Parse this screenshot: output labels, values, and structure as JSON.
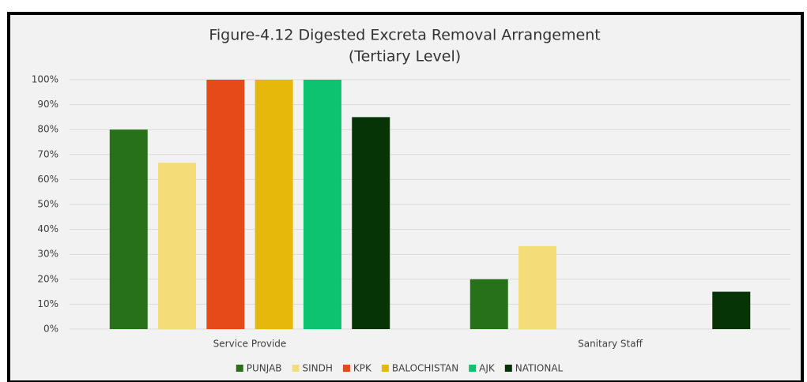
{
  "chart_data": {
    "type": "bar",
    "title": "Figure-4.12 Digested Excreta Removal Arrangement",
    "subtitle": "(Tertiary Level)",
    "categories": [
      "Service Provide",
      "Sanitary Staff"
    ],
    "series": [
      {
        "name": "PUNJAB",
        "color": "#277118",
        "values": [
          80,
          20
        ]
      },
      {
        "name": "SINDH",
        "color": "#f4dd78",
        "values": [
          66.7,
          33.3
        ]
      },
      {
        "name": "KPK",
        "color": "#e64a19",
        "values": [
          100,
          0
        ]
      },
      {
        "name": "BALOCHISTAN",
        "color": "#e6b80c",
        "values": [
          100,
          0
        ]
      },
      {
        "name": "AJK",
        "color": "#0dc36f",
        "values": [
          100,
          0
        ]
      },
      {
        "name": "NATIONAL",
        "color": "#063406",
        "values": [
          85,
          15
        ]
      }
    ],
    "ylim": [
      0,
      100
    ],
    "yticks": [
      {
        "value": 0,
        "label": "0%"
      },
      {
        "value": 10,
        "label": "10%"
      },
      {
        "value": 20,
        "label": "20%"
      },
      {
        "value": 30,
        "label": "30%"
      },
      {
        "value": 40,
        "label": "40%"
      },
      {
        "value": 50,
        "label": "50%"
      },
      {
        "value": 60,
        "label": "60%"
      },
      {
        "value": 70,
        "label": "70%"
      },
      {
        "value": 80,
        "label": "80%"
      },
      {
        "value": 90,
        "label": "90%"
      },
      {
        "value": 100,
        "label": "100%"
      }
    ],
    "grid": true,
    "legend": "bottom"
  }
}
